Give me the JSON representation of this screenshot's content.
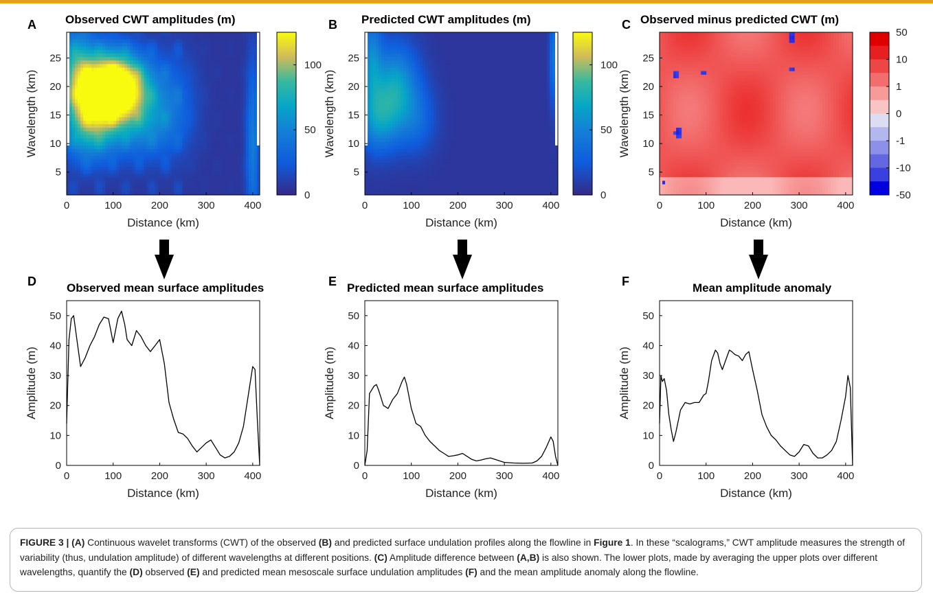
{
  "colors": {
    "accent_bar": "#e3a21a",
    "line": "#000000",
    "diverging_pos": "#e00000",
    "diverging_neg": "#0000e0"
  },
  "chart_data": [
    {
      "panel": "A",
      "type": "heatmap",
      "title": "Observed CWT amplitudes (m)",
      "xlabel": "Distance (km)",
      "ylabel": "Wavelength (km)",
      "xticks": [
        "0",
        "100",
        "200",
        "300",
        "400"
      ],
      "yticks": [
        "5",
        "10",
        "15",
        "20",
        "25"
      ],
      "xlim": [
        0,
        415
      ],
      "ylim": [
        1,
        29.5
      ],
      "colormap": "parula",
      "colorbar": {
        "range": [
          0,
          125
        ],
        "ticks": [
          "0",
          "50",
          "100"
        ]
      },
      "hotspots": [
        {
          "x": 120,
          "y": 20,
          "value": 115,
          "sx": 45,
          "sy": 4
        },
        {
          "x": 70,
          "y": 19,
          "value": 90,
          "sx": 40,
          "sy": 5
        },
        {
          "x": 20,
          "y": 22,
          "value": 60,
          "sx": 25,
          "sy": 6
        },
        {
          "x": 50,
          "y": 12,
          "value": 45,
          "sx": 40,
          "sy": 4
        },
        {
          "x": 160,
          "y": 13,
          "value": 40,
          "sx": 45,
          "sy": 4
        },
        {
          "x": 230,
          "y": 17,
          "value": 25,
          "sx": 35,
          "sy": 6
        },
        {
          "x": 400,
          "y": 10,
          "value": 40,
          "sx": 10,
          "sy": 10
        }
      ]
    },
    {
      "panel": "B",
      "type": "heatmap",
      "title": "Predicted CWT amplitudes (m)",
      "xlabel": "Distance (km)",
      "ylabel": "Wavelength (km)",
      "xticks": [
        "0",
        "100",
        "200",
        "300",
        "400"
      ],
      "yticks": [
        "5",
        "10",
        "15",
        "20",
        "25"
      ],
      "xlim": [
        0,
        415
      ],
      "ylim": [
        1,
        29.5
      ],
      "colormap": "parula",
      "colorbar": {
        "range": [
          0,
          125
        ],
        "ticks": [
          "0",
          "50",
          "100"
        ]
      },
      "hotspots": [
        {
          "x": 65,
          "y": 20,
          "value": 60,
          "sx": 35,
          "sy": 5
        },
        {
          "x": 30,
          "y": 14,
          "value": 45,
          "sx": 30,
          "sy": 4
        },
        {
          "x": 15,
          "y": 25,
          "value": 40,
          "sx": 15,
          "sy": 6
        },
        {
          "x": 110,
          "y": 14,
          "value": 25,
          "sx": 30,
          "sy": 4
        },
        {
          "x": 405,
          "y": 25,
          "value": 35,
          "sx": 6,
          "sy": 6
        }
      ]
    },
    {
      "panel": "C",
      "type": "heatmap",
      "title": "Observed minus predicted CWT (m)",
      "xlabel": "Distance (km)",
      "ylabel": "Wavelength (km)",
      "xticks": [
        "0",
        "100",
        "200",
        "300",
        "400"
      ],
      "yticks": [
        "5",
        "10",
        "15",
        "20",
        "25"
      ],
      "xlim": [
        0,
        415
      ],
      "ylim": [
        1,
        29.5
      ],
      "colormap": "diverging red-white-blue",
      "colorbar": {
        "ticks": [
          "50",
          "10",
          "1",
          "0",
          "-1",
          "-10",
          "-50"
        ]
      },
      "negative_spots": [
        {
          "x": 35,
          "y": 22,
          "r": 6
        },
        {
          "x": 95,
          "y": 22.5,
          "r": 5
        },
        {
          "x": 40,
          "y": 12,
          "r": 9
        },
        {
          "x": 285,
          "y": 28.5,
          "r": 10
        },
        {
          "x": 285,
          "y": 23,
          "r": 5
        },
        {
          "x": 10,
          "y": 3,
          "r": 4
        }
      ]
    },
    {
      "panel": "D",
      "type": "line",
      "title": "Observed mean surface amplitudes",
      "xlabel": "Distance (km)",
      "ylabel": "Amplitude (m)",
      "xticks": [
        "0",
        "100",
        "200",
        "300",
        "400"
      ],
      "yticks": [
        "0",
        "10",
        "20",
        "30",
        "40",
        "50"
      ],
      "xlim": [
        0,
        415
      ],
      "ylim": [
        0,
        55
      ],
      "x": [
        0,
        5,
        10,
        15,
        22,
        30,
        40,
        50,
        60,
        70,
        80,
        90,
        100,
        105,
        110,
        118,
        125,
        130,
        140,
        150,
        160,
        170,
        180,
        190,
        200,
        210,
        220,
        230,
        240,
        250,
        260,
        270,
        280,
        290,
        300,
        310,
        320,
        330,
        340,
        350,
        360,
        370,
        380,
        390,
        400,
        405,
        410,
        415
      ],
      "y": [
        14,
        42,
        49,
        50,
        42,
        33,
        36,
        40,
        43,
        47,
        49.5,
        49,
        41,
        45,
        49,
        51.5,
        47,
        42,
        40,
        45,
        43,
        40,
        38,
        40,
        42,
        34,
        21,
        15.5,
        11,
        10.5,
        9,
        6.5,
        4.5,
        6,
        7.5,
        8.5,
        6,
        3.5,
        2.5,
        3,
        4.5,
        7.5,
        13,
        23,
        33,
        32,
        15,
        0
      ]
    },
    {
      "panel": "E",
      "type": "line",
      "title": "Predicted mean surface amplitudes",
      "xlabel": "Distance (km)",
      "ylabel": "Amplitude (m)",
      "xticks": [
        "0",
        "100",
        "200",
        "300",
        "400"
      ],
      "yticks": [
        "0",
        "10",
        "20",
        "30",
        "40",
        "50"
      ],
      "xlim": [
        0,
        415
      ],
      "ylim": [
        0,
        55
      ],
      "x": [
        0,
        5,
        10,
        20,
        25,
        30,
        40,
        50,
        60,
        70,
        80,
        85,
        90,
        100,
        110,
        120,
        130,
        140,
        150,
        160,
        170,
        180,
        190,
        200,
        210,
        220,
        230,
        240,
        250,
        260,
        270,
        280,
        290,
        300,
        320,
        340,
        360,
        370,
        380,
        390,
        400,
        405,
        410,
        415
      ],
      "y": [
        0,
        5,
        24,
        26.5,
        27,
        25,
        20,
        19,
        22,
        24,
        28,
        29.5,
        27,
        19,
        14,
        13,
        10,
        8,
        6.5,
        5,
        4,
        3,
        3.2,
        3.5,
        4,
        3,
        2,
        1.5,
        1.8,
        2.2,
        2.5,
        2,
        1.5,
        1,
        0.8,
        0.7,
        0.8,
        1.5,
        3,
        6,
        9.5,
        8,
        3,
        0
      ]
    },
    {
      "panel": "F",
      "type": "line",
      "title": "Mean amplitude anomaly",
      "xlabel": "Distance (km)",
      "ylabel": "Amplitude (m)",
      "xticks": [
        "0",
        "100",
        "200",
        "300",
        "400"
      ],
      "yticks": [
        "0",
        "10",
        "20",
        "30",
        "40",
        "50"
      ],
      "xlim": [
        0,
        415
      ],
      "ylim": [
        0,
        55
      ],
      "x": [
        0,
        3,
        6,
        10,
        15,
        20,
        25,
        30,
        35,
        45,
        55,
        65,
        75,
        85,
        95,
        100,
        105,
        112,
        120,
        125,
        130,
        135,
        142,
        150,
        155,
        162,
        170,
        178,
        185,
        192,
        200,
        210,
        220,
        230,
        240,
        250,
        260,
        270,
        280,
        290,
        300,
        310,
        320,
        330,
        340,
        350,
        360,
        370,
        380,
        390,
        400,
        405,
        410,
        415
      ],
      "y": [
        14,
        30,
        28,
        29,
        25,
        17,
        12,
        8,
        11,
        18.5,
        21,
        20.5,
        21,
        21,
        23.5,
        24,
        28,
        35,
        38.5,
        37.5,
        34,
        32,
        35,
        38.5,
        38,
        37,
        36.5,
        35,
        37,
        38,
        32,
        25,
        17,
        13,
        10,
        8.5,
        6.5,
        5,
        3.5,
        3,
        4.5,
        7,
        6.5,
        4,
        2.5,
        2.5,
        3.5,
        5,
        8,
        15,
        23,
        30,
        26,
        0
      ]
    }
  ],
  "caption": {
    "segments": [
      {
        "t": "FIGURE 3 | ",
        "b": true
      },
      {
        "t": "(A)",
        "b": true
      },
      {
        "t": " Continuous wavelet transforms (CWT) of the observed ",
        "b": false
      },
      {
        "t": "(B)",
        "b": true
      },
      {
        "t": " and predicted surface undulation profiles along the flowline in ",
        "b": false
      },
      {
        "t": "Figure 1",
        "b": true
      },
      {
        "t": ". In these “scalograms,” CWT amplitude measures the strength of variability (thus, undulation amplitude) of different wavelengths at different positions. ",
        "b": false
      },
      {
        "t": "(C)",
        "b": true
      },
      {
        "t": " Amplitude difference between ",
        "b": false
      },
      {
        "t": "(A,B)",
        "b": true
      },
      {
        "t": " is also shown. The lower plots, made by averaging the upper plots over different wavelengths, quantify the ",
        "b": false
      },
      {
        "t": "(D)",
        "b": true
      },
      {
        "t": " observed ",
        "b": false
      },
      {
        "t": "(E)",
        "b": true
      },
      {
        "t": " and predicted mean mesoscale surface undulation amplitudes ",
        "b": false
      },
      {
        "t": "(F)",
        "b": true
      },
      {
        "t": " and the mean amplitude anomaly along the flowline.",
        "b": false
      }
    ]
  }
}
